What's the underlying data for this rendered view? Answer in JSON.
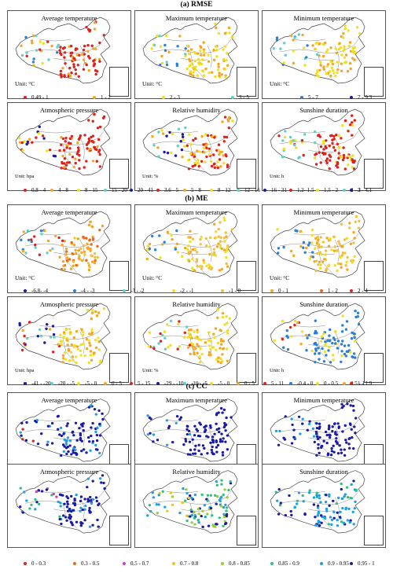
{
  "sections": [
    {
      "title": "(a) RMSE",
      "panels": [
        {
          "title": "Average temperature",
          "unit": "Unit: °C",
          "pattern": "rmse_temp"
        },
        {
          "title": "Maximum temperature",
          "unit": "Unit: °C",
          "pattern": "rmse_temp2"
        },
        {
          "title": "Minimum temperature",
          "unit": "Unit: °C",
          "pattern": "rmse_temp2"
        },
        {
          "title": "Atmospheric pressure",
          "unit": "Unit: hpa",
          "pattern": "rmse_press"
        },
        {
          "title": "Relative humidity",
          "unit": "Unit: %",
          "pattern": "rmse_rh"
        },
        {
          "title": "Sunshine duration",
          "unit": "Unit: h",
          "pattern": "rmse_sun"
        }
      ],
      "legends": [
        {
          "items": [
            {
              "label": "0.49 - 1",
              "color": "#e0201b"
            },
            {
              "label": "1 - 2",
              "color": "#f5a623"
            },
            {
              "label": "2 - 3",
              "color": "#f0e020"
            },
            {
              "label": "3 - 5",
              "color": "#5fd0c8"
            },
            {
              "label": "5 - 7",
              "color": "#2a7fd6"
            },
            {
              "label": "7 - 9.3",
              "color": "#1a1aa8"
            }
          ]
        },
        {
          "items": [
            {
              "label": "0.8 - 4",
              "color": "#e0201b"
            },
            {
              "label": "4 - 8",
              "color": "#f5a623"
            },
            {
              "label": "8 - 15",
              "color": "#f0e020"
            },
            {
              "label": "15 - 20",
              "color": "#5fd0c8"
            },
            {
              "label": "20 - 41",
              "color": "#1a1aa8"
            },
            {
              "label": "3.6 - 5",
              "color": "#e0201b"
            },
            {
              "label": "5 - 8",
              "color": "#f5a623"
            },
            {
              "label": "8 - 12",
              "color": "#f0e020"
            },
            {
              "label": "12 - 16",
              "color": "#5fd0c8"
            },
            {
              "label": "16 - 31",
              "color": "#1a1aa8"
            },
            {
              "label": "1.2- 1.5",
              "color": "#e0201b"
            },
            {
              "label": "1.5 - 2",
              "color": "#f0e020"
            },
            {
              "label": "2 - 3",
              "color": "#5fd0c8"
            },
            {
              "label": "3 - 4.1",
              "color": "#1a1aa8"
            }
          ]
        }
      ]
    },
    {
      "title": "(b) ME",
      "panels": [
        {
          "title": "Average temperature",
          "unit": "Unit: °C",
          "pattern": "me_temp"
        },
        {
          "title": "Maximum temperature",
          "unit": "Unit: °C",
          "pattern": "me_temp2"
        },
        {
          "title": "Minimum temperature",
          "unit": "Unit: °C",
          "pattern": "me_temp2"
        },
        {
          "title": "Atmospheric pressure",
          "unit": "Unit: hpa",
          "pattern": "me_press"
        },
        {
          "title": "Relative humidity",
          "unit": "Unit: %",
          "pattern": "me_rh"
        },
        {
          "title": "Sunshine duration",
          "unit": "Unit: h",
          "pattern": "me_sun"
        }
      ],
      "legends": [
        {
          "items": [
            {
              "label": "-6.8- -4",
              "color": "#1a1aa8"
            },
            {
              "label": "-4 - -3",
              "color": "#2a7fd6"
            },
            {
              "label": "-3 - -2",
              "color": "#5fd0c8"
            },
            {
              "label": "-2 - -1",
              "color": "#f0e020"
            },
            {
              "label": "-1 - 0",
              "color": "#f5c040"
            },
            {
              "label": "0 - 1",
              "color": "#f5a623"
            },
            {
              "label": "1 - 2",
              "color": "#e86a1a"
            },
            {
              "label": "2 - 4",
              "color": "#e0201b"
            }
          ]
        },
        {
          "items": [
            {
              "label": "-41 - -20",
              "color": "#1a1aa8"
            },
            {
              "label": "-20 - -5",
              "color": "#5fd0c8"
            },
            {
              "label": "-5 - 0",
              "color": "#f0e020"
            },
            {
              "label": "0 - 5",
              "color": "#f5a623"
            },
            {
              "label": "5 - 15",
              "color": "#e0201b"
            },
            {
              "label": "-29 - -10",
              "color": "#1a1aa8"
            },
            {
              "label": "-10 - -5",
              "color": "#5fd0c8"
            },
            {
              "label": "-5 - 0",
              "color": "#f0e020"
            },
            {
              "label": "0 - 5",
              "color": "#f5a623"
            },
            {
              "label": "5 - 11",
              "color": "#e0201b"
            },
            {
              "label": "-0.4 - 0",
              "color": "#2a7fd6"
            },
            {
              "label": "0 - 0.5",
              "color": "#f0e020"
            },
            {
              "label": "0.5 - 1",
              "color": "#f5a623"
            },
            {
              "label": "1 - 1.9",
              "color": "#e0201b"
            }
          ]
        }
      ]
    },
    {
      "title": "(c) CC",
      "panels": [
        {
          "title": "Average temperature",
          "unit": "",
          "pattern": "cc_temp"
        },
        {
          "title": "Maximum temperature",
          "unit": "",
          "pattern": "cc_temp2"
        },
        {
          "title": "Minimum temperature",
          "unit": "",
          "pattern": "cc_temp2"
        },
        {
          "title": "Atmospheric pressure",
          "unit": "",
          "pattern": "cc_press"
        },
        {
          "title": "Relative humidity",
          "unit": "",
          "pattern": "cc_rh"
        },
        {
          "title": "Sunshine duration",
          "unit": "",
          "pattern": "cc_sun"
        }
      ],
      "legends": [
        {
          "items": [
            {
              "label": "0 - 0.3",
              "color": "#e0201b"
            },
            {
              "label": "0.3 - 0.5",
              "color": "#e86a1a"
            },
            {
              "label": "0.5 - 0.7",
              "color": "#d040c0"
            },
            {
              "label": "0.7 - 0.8",
              "color": "#f0c020"
            },
            {
              "label": "0.8 - 0.85",
              "color": "#9acd32"
            },
            {
              "label": "0.85 - 0.9",
              "color": "#30c080"
            },
            {
              "label": "0.9 - 0.95",
              "color": "#20a0e0"
            },
            {
              "label": "0.95 - 1",
              "color": "#1a1aa8"
            }
          ]
        }
      ]
    }
  ]
}
